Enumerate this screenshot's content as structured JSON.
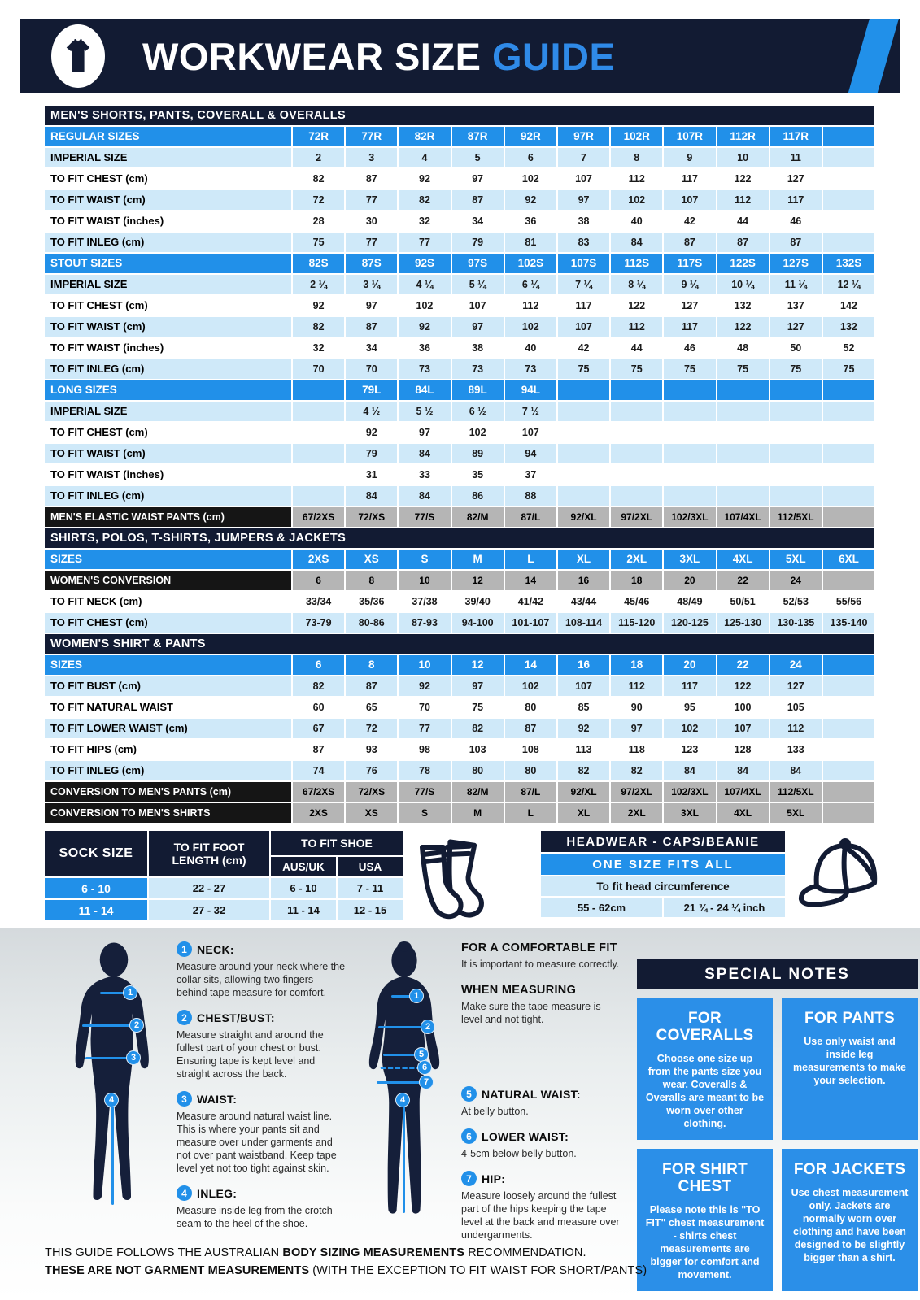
{
  "header": {
    "title_white": "WORKWEAR SIZE ",
    "title_blue": "GUIDE"
  },
  "colors": {
    "navy": "#121b33",
    "blue": "#2190e9",
    "light_blue": "#cfe9f9",
    "gray": "#b5b5b5",
    "black_row": "#151515"
  },
  "size_sections": [
    {
      "title": "MEN'S SHORTS, PANTS, COVERALL & OVERALLS",
      "rows": [
        {
          "style": "header",
          "label": "REGULAR SIZES",
          "cells": [
            "72R",
            "77R",
            "82R",
            "87R",
            "92R",
            "97R",
            "102R",
            "107R",
            "112R",
            "117R",
            ""
          ]
        },
        {
          "style": "light",
          "label": "IMPERIAL SIZE",
          "cells": [
            "2",
            "3",
            "4",
            "5",
            "6",
            "7",
            "8",
            "9",
            "10",
            "11",
            ""
          ]
        },
        {
          "style": "white",
          "label": "TO FIT CHEST (cm)",
          "cells": [
            "82",
            "87",
            "92",
            "97",
            "102",
            "107",
            "112",
            "117",
            "122",
            "127",
            ""
          ]
        },
        {
          "style": "light",
          "label": "TO FIT WAIST (cm)",
          "cells": [
            "72",
            "77",
            "82",
            "87",
            "92",
            "97",
            "102",
            "107",
            "112",
            "117",
            ""
          ]
        },
        {
          "style": "white",
          "label": "TO FIT WAIST (inches)",
          "cells": [
            "28",
            "30",
            "32",
            "34",
            "36",
            "38",
            "40",
            "42",
            "44",
            "46",
            ""
          ]
        },
        {
          "style": "light",
          "label": "TO FIT INLEG (cm)",
          "cells": [
            "75",
            "77",
            "77",
            "79",
            "81",
            "83",
            "84",
            "87",
            "87",
            "87",
            ""
          ]
        },
        {
          "style": "header",
          "label": "STOUT SIZES",
          "cells": [
            "82S",
            "87S",
            "92S",
            "97S",
            "102S",
            "107S",
            "112S",
            "117S",
            "122S",
            "127S",
            "132S"
          ]
        },
        {
          "style": "light",
          "label": "IMPERIAL SIZE",
          "cells": [
            "2 ¼",
            "3 ¼",
            "4 ¼",
            "5 ¼",
            "6 ¼",
            "7 ¼",
            "8 ¼",
            "9 ¼",
            "10 ¼",
            "11 ¼",
            "12 ¼"
          ]
        },
        {
          "style": "white",
          "label": "TO FIT CHEST (cm)",
          "cells": [
            "92",
            "97",
            "102",
            "107",
            "112",
            "117",
            "122",
            "127",
            "132",
            "137",
            "142"
          ]
        },
        {
          "style": "light",
          "label": "TO FIT WAIST (cm)",
          "cells": [
            "82",
            "87",
            "92",
            "97",
            "102",
            "107",
            "112",
            "117",
            "122",
            "127",
            "132"
          ]
        },
        {
          "style": "white",
          "label": "TO FIT WAIST (inches)",
          "cells": [
            "32",
            "34",
            "36",
            "38",
            "40",
            "42",
            "44",
            "46",
            "48",
            "50",
            "52"
          ]
        },
        {
          "style": "light",
          "label": "TO FIT INLEG (cm)",
          "cells": [
            "70",
            "70",
            "73",
            "73",
            "73",
            "75",
            "75",
            "75",
            "75",
            "75",
            "75"
          ]
        },
        {
          "style": "header",
          "label": "LONG SIZES",
          "cells": [
            "",
            "79L",
            "84L",
            "89L",
            "94L",
            "",
            "",
            "",
            "",
            "",
            ""
          ]
        },
        {
          "style": "light",
          "label": "IMPERIAL SIZE",
          "cells": [
            "",
            "4 ½",
            "5 ½",
            "6 ½",
            "7 ½",
            "",
            "",
            "",
            "",
            "",
            ""
          ]
        },
        {
          "style": "white",
          "label": "TO FIT CHEST (cm)",
          "cells": [
            "",
            "92",
            "97",
            "102",
            "107",
            "",
            "",
            "",
            "",
            "",
            ""
          ]
        },
        {
          "style": "light",
          "label": "TO FIT WAIST (cm)",
          "cells": [
            "",
            "79",
            "84",
            "89",
            "94",
            "",
            "",
            "",
            "",
            "",
            ""
          ]
        },
        {
          "style": "white",
          "label": "TO FIT WAIST (inches)",
          "cells": [
            "",
            "31",
            "33",
            "35",
            "37",
            "",
            "",
            "",
            "",
            "",
            ""
          ]
        },
        {
          "style": "light",
          "label": "TO FIT INLEG (cm)",
          "cells": [
            "",
            "84",
            "84",
            "86",
            "88",
            "",
            "",
            "",
            "",
            "",
            ""
          ]
        },
        {
          "style": "dark",
          "label": "MEN'S ELASTIC WAIST PANTS (cm)",
          "cells": [
            "67/2XS",
            "72/XS",
            "77/S",
            "82/M",
            "87/L",
            "92/XL",
            "97/2XL",
            "102/3XL",
            "107/4XL",
            "112/5XL",
            ""
          ]
        }
      ]
    },
    {
      "title": "SHIRTS, POLOS, T-SHIRTS, JUMPERS & JACKETS",
      "rows": [
        {
          "style": "header",
          "label": "SIZES",
          "cells": [
            "2XS",
            "XS",
            "S",
            "M",
            "L",
            "XL",
            "2XL",
            "3XL",
            "4XL",
            "5XL",
            "6XL"
          ]
        },
        {
          "style": "dark",
          "label": "WOMEN'S CONVERSION",
          "cells": [
            "6",
            "8",
            "10",
            "12",
            "14",
            "16",
            "18",
            "20",
            "22",
            "24",
            ""
          ]
        },
        {
          "style": "white",
          "label": "TO FIT NECK (cm)",
          "cells": [
            "33/34",
            "35/36",
            "37/38",
            "39/40",
            "41/42",
            "43/44",
            "45/46",
            "48/49",
            "50/51",
            "52/53",
            "55/56"
          ]
        },
        {
          "style": "light",
          "label": "TO FIT CHEST (cm)",
          "cells": [
            "73-79",
            "80-86",
            "87-93",
            "94-100",
            "101-107",
            "108-114",
            "115-120",
            "120-125",
            "125-130",
            "130-135",
            "135-140"
          ]
        }
      ]
    },
    {
      "title": "WOMEN'S SHIRT & PANTS",
      "rows": [
        {
          "style": "header",
          "label": "SIZES",
          "cells": [
            "6",
            "8",
            "10",
            "12",
            "14",
            "16",
            "18",
            "20",
            "22",
            "24",
            ""
          ]
        },
        {
          "style": "light",
          "label": "TO FIT BUST (cm)",
          "cells": [
            "82",
            "87",
            "92",
            "97",
            "102",
            "107",
            "112",
            "117",
            "122",
            "127",
            ""
          ]
        },
        {
          "style": "white",
          "label": "TO FIT NATURAL WAIST",
          "cells": [
            "60",
            "65",
            "70",
            "75",
            "80",
            "85",
            "90",
            "95",
            "100",
            "105",
            ""
          ]
        },
        {
          "style": "light",
          "label": "TO FIT LOWER WAIST (cm)",
          "cells": [
            "67",
            "72",
            "77",
            "82",
            "87",
            "92",
            "97",
            "102",
            "107",
            "112",
            ""
          ]
        },
        {
          "style": "white",
          "label": "TO FIT HIPS (cm)",
          "cells": [
            "87",
            "93",
            "98",
            "103",
            "108",
            "113",
            "118",
            "123",
            "128",
            "133",
            ""
          ]
        },
        {
          "style": "light",
          "label": "TO FIT INLEG (cm)",
          "cells": [
            "74",
            "76",
            "78",
            "80",
            "80",
            "82",
            "82",
            "84",
            "84",
            "84",
            ""
          ]
        },
        {
          "style": "dark",
          "label": "CONVERSION TO MEN'S PANTS (cm)",
          "cells": [
            "67/2XS",
            "72/XS",
            "77/S",
            "82/M",
            "87/L",
            "92/XL",
            "97/2XL",
            "102/3XL",
            "107/4XL",
            "112/5XL",
            ""
          ]
        },
        {
          "style": "dark",
          "label": "CONVERSION TO MEN'S SHIRTS",
          "cells": [
            "2XS",
            "XS",
            "S",
            "M",
            "L",
            "XL",
            "2XL",
            "3XL",
            "4XL",
            "5XL",
            ""
          ]
        }
      ]
    }
  ],
  "sock_table": {
    "size_header": "SOCK SIZE",
    "foot_header": "TO FIT FOOT LENGTH (cm)",
    "shoe_header": "TO FIT SHOE",
    "sub_headers": [
      "AUS/UK",
      "USA"
    ],
    "rows": [
      [
        "6 - 10",
        "22 - 27",
        "6 - 10",
        "7 - 11"
      ],
      [
        "11 - 14",
        "27 - 32",
        "11 - 14",
        "12 - 15"
      ]
    ]
  },
  "headwear": {
    "title": "HEADWEAR - CAPS/BEANIE",
    "subtitle": "ONE SIZE FITS ALL",
    "row_label": "To fit head circumference",
    "value_cm": "55 - 62cm",
    "value_inch": "21 ¾ - 24 ¼ inch"
  },
  "guide": {
    "left_items": [
      {
        "num": "1",
        "title": "NECK:",
        "text": "Measure around your neck where the collar sits, allowing two fingers behind tape measure for comfort."
      },
      {
        "num": "2",
        "title": "CHEST/BUST:",
        "text": "Measure straight and around the fullest part of your chest or bust. Ensuring tape is kept level and straight across the back."
      },
      {
        "num": "3",
        "title": "WAIST:",
        "text": "Measure around natural waist line. This is where your pants sit and measure over under garments and not over pant waistband. Keep tape level yet not too tight against skin."
      },
      {
        "num": "4",
        "title": "INLEG:",
        "text": "Measure inside leg from the crotch seam to the heel of the shoe."
      }
    ],
    "mid": {
      "fit_title": "FOR A COMFORTABLE FIT",
      "fit_text": "It is important to measure correctly.",
      "measuring_title": "WHEN MEASURING",
      "measuring_text": "Make sure the tape measure is level and not tight.",
      "items": [
        {
          "num": "5",
          "title": "NATURAL WAIST:",
          "text": "At belly button."
        },
        {
          "num": "6",
          "title": "LOWER WAIST:",
          "text": "4-5cm below belly button."
        },
        {
          "num": "7",
          "title": "HIP:",
          "text": "Measure loosely around the fullest part of the hips keeping the tape level at the back and measure over undergarments."
        }
      ]
    }
  },
  "special_notes": {
    "title": "SPECIAL NOTES",
    "boxes": [
      {
        "title": "FOR COVERALLS",
        "text": "Choose one size up from the pants size you wear. Coveralls & Overalls are meant to be worn over other clothing."
      },
      {
        "title": "FOR PANTS",
        "text": "Use only waist and inside leg measurements to make your selection."
      },
      {
        "title": "FOR SHIRT CHEST",
        "text": "Please note this is \"TO FIT\" chest measurement - shirts chest measurements are bigger for comfort and movement."
      },
      {
        "title": "FOR JACKETS",
        "text": "Use chest measurement only. Jackets are normally worn over clothing and have been designed to be slightly bigger than a shirt."
      }
    ]
  },
  "footer": {
    "line1_a": "THIS GUIDE FOLLOWS THE AUSTRALIAN ",
    "line1_b": "BODY SIZING MEASUREMENTS",
    "line1_c": " RECOMMENDATION.",
    "line2_a": "THESE ARE NOT GARMENT MEASUREMENTS",
    "line2_b": " (WITH THE EXCEPTION TO FIT WAIST FOR SHORT/PANTS)"
  }
}
